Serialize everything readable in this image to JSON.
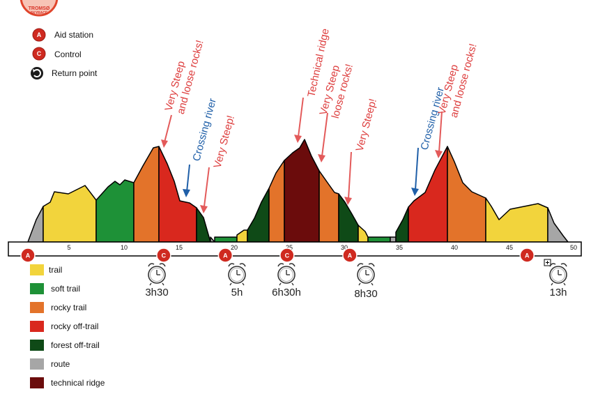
{
  "logo_text": [
    "TROMSØ",
    "SKYRACE"
  ],
  "top_legend": [
    {
      "icon": "aid-station-icon",
      "letter": "A",
      "label": "Aid station"
    },
    {
      "icon": "control-icon",
      "letter": "C",
      "label": "Control"
    },
    {
      "icon": "return-point-icon",
      "letter": "",
      "label": "Return point"
    }
  ],
  "annotations": [
    {
      "lines": [
        "Very Steep",
        "and loose rocks!"
      ],
      "color": "#dd3d3d"
    },
    {
      "lines": [
        "Crossing river"
      ],
      "color": "#1f5fa8"
    },
    {
      "lines": [
        "Very Steep!"
      ],
      "color": "#dd3d3d"
    },
    {
      "lines": [
        "Technical ridge"
      ],
      "color": "#dd3d3d"
    },
    {
      "lines": [
        "Very Steep",
        "loose rocks!"
      ],
      "color": "#dd3d3d"
    },
    {
      "lines": [
        "Very Steep!"
      ],
      "color": "#dd3d3d"
    },
    {
      "lines": [
        "Crossing river"
      ],
      "color": "#1f5fa8"
    },
    {
      "lines": [
        "Very Steep",
        "and loose rocks!"
      ],
      "color": "#dd3d3d"
    }
  ],
  "distance_ticks": [
    "5",
    "10",
    "15",
    "20",
    "25",
    "30",
    "35",
    "40",
    "45",
    "50"
  ],
  "markers": [
    {
      "type": "aid",
      "letter": "A",
      "km": 0
    },
    {
      "type": "control",
      "letter": "C",
      "km": 13.6
    },
    {
      "type": "aid",
      "letter": "A",
      "km": 19.2
    },
    {
      "type": "control",
      "letter": "C",
      "km": 24.8
    },
    {
      "type": "aid",
      "letter": "A",
      "km": 30.5
    },
    {
      "type": "aid",
      "letter": "A",
      "km": 46.6
    }
  ],
  "times": [
    "3h30",
    "5h",
    "6h30h",
    "8h30",
    "13h"
  ],
  "surface_legend": [
    {
      "label": "trail",
      "color": "#f2d43c"
    },
    {
      "label": "soft trail",
      "color": "#1e9137"
    },
    {
      "label": "rocky trail",
      "color": "#e3732a"
    },
    {
      "label": "rocky off-trail",
      "color": "#d9281e"
    },
    {
      "label": "forest off-trail",
      "color": "#0f4a17"
    },
    {
      "label": "route",
      "color": "#a6a6a6"
    },
    {
      "label": "technical ridge",
      "color": "#6b0c0c"
    }
  ]
}
